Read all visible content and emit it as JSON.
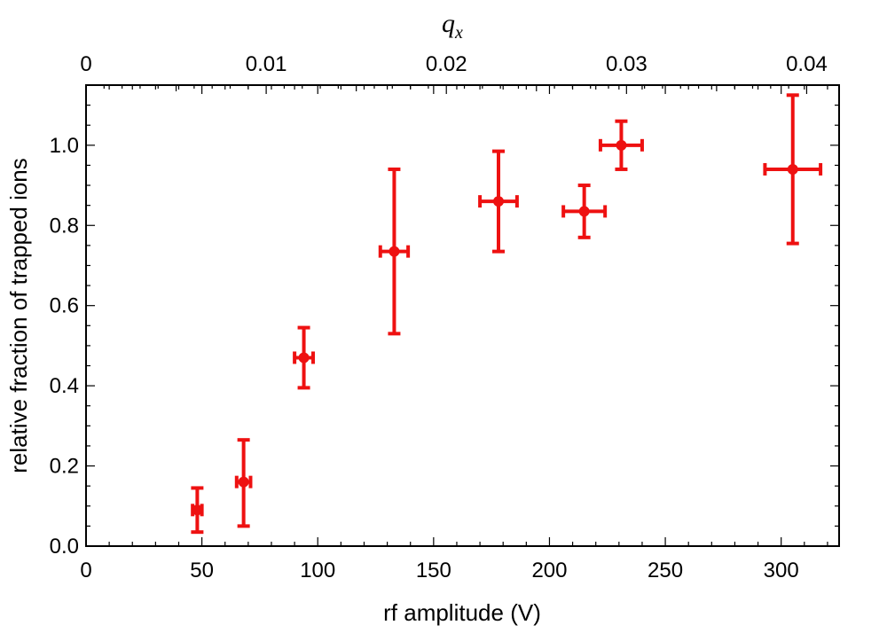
{
  "chart_data": {
    "type": "scatter",
    "xlabel": "rf amplitude (V)",
    "ylabel": "relative fraction of trapped ions",
    "x2label_main": "q",
    "x2label_sub": "x",
    "xlim": [
      0,
      325
    ],
    "ylim": [
      0,
      1.15
    ],
    "x2lim": [
      0,
      0.0418
    ],
    "x_ticks": [
      0,
      50,
      100,
      150,
      200,
      250,
      300
    ],
    "x_tick_labels": [
      "0",
      "50",
      "100",
      "150",
      "200",
      "250",
      "300"
    ],
    "y_ticks": [
      0.0,
      0.2,
      0.4,
      0.6,
      0.8,
      1.0
    ],
    "y_tick_labels": [
      "0.0",
      "0.2",
      "0.4",
      "0.6",
      "0.8",
      "1.0"
    ],
    "x2_ticks": [
      0,
      0.01,
      0.02,
      0.03,
      0.04
    ],
    "x2_tick_labels": [
      "0",
      "0.01",
      "0.02",
      "0.03",
      "0.04"
    ],
    "grid": false,
    "color": "#ee1111",
    "points": [
      {
        "x": 48,
        "y": 0.09,
        "xerr": 2,
        "yerr_low": 0.055,
        "yerr_high": 0.055
      },
      {
        "x": 68,
        "y": 0.16,
        "xerr": 3,
        "yerr_low": 0.11,
        "yerr_high": 0.105
      },
      {
        "x": 94,
        "y": 0.47,
        "xerr": 4,
        "yerr_low": 0.075,
        "yerr_high": 0.075
      },
      {
        "x": 133,
        "y": 0.735,
        "xerr": 6,
        "yerr_low": 0.205,
        "yerr_high": 0.205
      },
      {
        "x": 178,
        "y": 0.86,
        "xerr": 8,
        "yerr_low": 0.125,
        "yerr_high": 0.125
      },
      {
        "x": 215,
        "y": 0.835,
        "xerr": 9,
        "yerr_low": 0.065,
        "yerr_high": 0.065
      },
      {
        "x": 231,
        "y": 1.0,
        "xerr": 9,
        "yerr_low": 0.06,
        "yerr_high": 0.06
      },
      {
        "x": 305,
        "y": 0.94,
        "xerr": 12,
        "yerr_low": 0.185,
        "yerr_high": 0.185
      }
    ]
  }
}
